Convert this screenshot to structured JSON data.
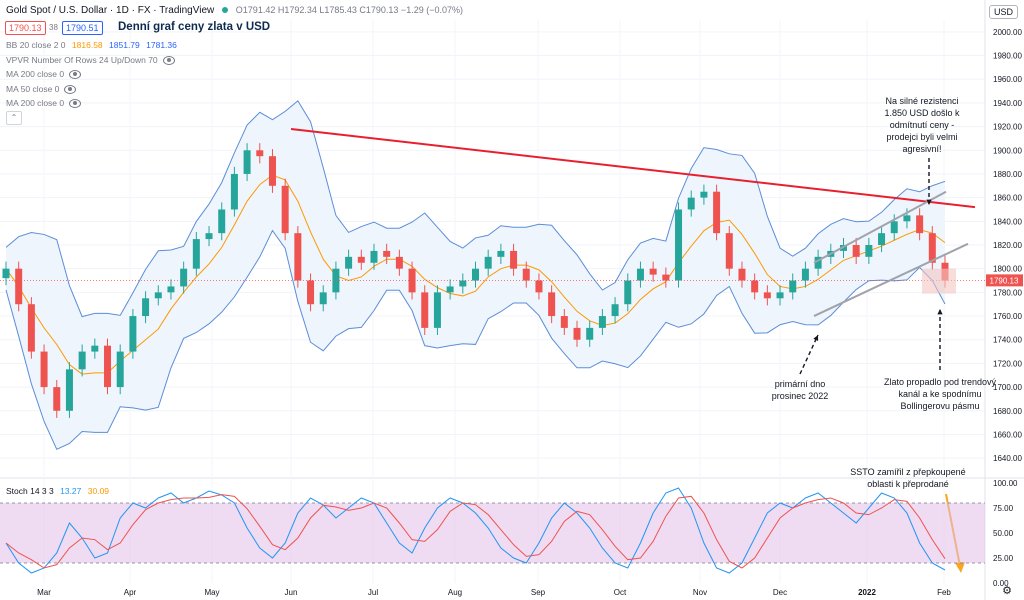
{
  "header": {
    "symbol": "Gold Spot / U.S. Dollar · 1D · FX · TradingView",
    "ohlc": "O1791.42 H1792.34 L1785.43 C1790.13 −1.29 (−0.07%)",
    "price_sell": "1790.13",
    "spread": "38",
    "price_buy": "1790.51",
    "title": "Denní graf ceny zlata v USD",
    "currency_button": "USD"
  },
  "indicators": [
    {
      "label": "BB 20 close 2 0",
      "values": [
        "1816.58",
        "1851.79",
        "1781.36"
      ],
      "colors": [
        "#ff9800",
        "#2962ff",
        "#2962ff"
      ]
    },
    {
      "label": "VPVR Number Of Rows 24 Up/Down 70",
      "values": []
    },
    {
      "label": "MA 200 close 0",
      "values": []
    },
    {
      "label": "MA 50 close 0",
      "values": []
    },
    {
      "label": "MA 200 close 0",
      "values": []
    }
  ],
  "stoch_legend": {
    "label": "Stoch 14 3 3",
    "k": "13.27",
    "d": "30.09",
    "k_color": "#2196f3",
    "d_color": "#ff9800"
  },
  "annotations": {
    "resistance": "Na silné rezistenci 1.850 USD došlo k odmítnutí ceny - prodejci byli velmi agresivní!",
    "bottom": "primární dno prosinec 2022",
    "breakdown": "Zlato propadlo pod trendový kanál a ke spodnímu Bollingerovu pásmu",
    "stoch": "SSTO zamířil z přepkoupené oblasti k přeprodané"
  },
  "colors": {
    "up": "#26a69a",
    "down": "#ef5350",
    "bb_band": "#5b8dd8",
    "bb_basis": "#ff9800",
    "bb_fill": "#eef5fc",
    "resistance_line": "#e8202e",
    "channel": "#a0a3ab",
    "stoch_band": "#e1bee7"
  },
  "chart_data": {
    "type": "candlestick",
    "symbol": "Gold Spot / U.S. Dollar",
    "timeframe": "1D",
    "last_close": 1790.13,
    "x_axis_labels": [
      "Mar",
      "Apr",
      "May",
      "Jun",
      "Jul",
      "Aug",
      "Sep",
      "Oct",
      "Nov",
      "Dec",
      "2022",
      "Feb"
    ],
    "price_axis_ticks": [
      2000,
      1980,
      1960,
      1940,
      1920,
      1900,
      1880,
      1860,
      1840,
      1820,
      1800,
      1780,
      1760,
      1740,
      1720,
      1700,
      1680,
      1660,
      1640
    ],
    "price_range": [
      1630,
      2010
    ],
    "stoch_ticks": [
      "100.00",
      "75.00",
      "50.00",
      "25.00",
      "0.00"
    ],
    "stoch_range": [
      0,
      100
    ],
    "stoch_band": [
      20,
      80
    ],
    "price_closes_approx": [
      1800,
      1770,
      1730,
      1700,
      1680,
      1715,
      1730,
      1735,
      1700,
      1730,
      1760,
      1775,
      1780,
      1785,
      1800,
      1825,
      1830,
      1850,
      1880,
      1900,
      1895,
      1870,
      1830,
      1790,
      1770,
      1780,
      1800,
      1810,
      1805,
      1815,
      1810,
      1800,
      1780,
      1750,
      1780,
      1785,
      1790,
      1800,
      1810,
      1815,
      1800,
      1790,
      1780,
      1760,
      1750,
      1740,
      1750,
      1760,
      1770,
      1790,
      1800,
      1795,
      1790,
      1850,
      1860,
      1865,
      1830,
      1800,
      1790,
      1780,
      1775,
      1780,
      1790,
      1800,
      1810,
      1815,
      1820,
      1810,
      1820,
      1830,
      1840,
      1845,
      1830,
      1805,
      1790
    ],
    "resistance_line": {
      "from_price": 1918,
      "to_price": 1852
    },
    "stoch_k_approx": [
      40,
      20,
      10,
      15,
      30,
      60,
      45,
      25,
      30,
      65,
      80,
      75,
      85,
      90,
      80,
      85,
      92,
      88,
      80,
      55,
      35,
      25,
      40,
      70,
      85,
      78,
      65,
      75,
      85,
      80,
      60,
      40,
      30,
      55,
      75,
      85,
      80,
      70,
      55,
      35,
      25,
      20,
      40,
      65,
      80,
      70,
      55,
      35,
      20,
      15,
      40,
      70,
      90,
      95,
      75,
      40,
      15,
      10,
      20,
      45,
      70,
      80,
      75,
      85,
      90,
      80,
      70,
      60,
      75,
      90,
      85,
      70,
      40,
      20,
      13
    ]
  }
}
